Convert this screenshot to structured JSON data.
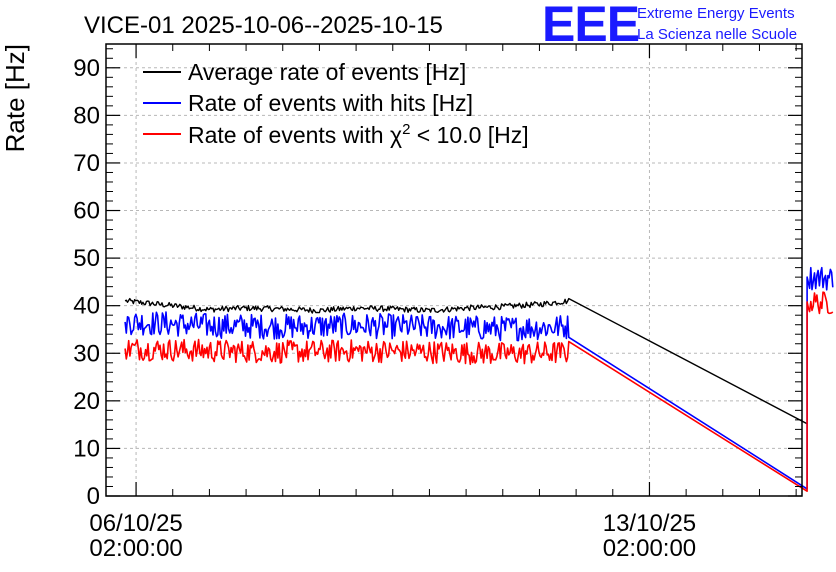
{
  "chart_data": {
    "type": "line",
    "title": "VICE-01 2025-10-06--2025-10-15",
    "ylabel": "Rate [Hz]",
    "xlabel": "",
    "ylim": [
      0,
      95
    ],
    "y_ticks": [
      0,
      10,
      20,
      30,
      40,
      50,
      60,
      70,
      80,
      90
    ],
    "x_range_days": [
      -0.41,
      9.08
    ],
    "x_ticks": [
      {
        "day": 0,
        "date": "06/10/25",
        "time": "02:00:00"
      },
      {
        "day": 7,
        "date": "13/10/25",
        "time": "02:00:00"
      }
    ],
    "grid": true,
    "legend_position": "top-left",
    "series": [
      {
        "name": "Average rate of events [Hz]",
        "color": "#000000",
        "noise": 0.6,
        "points": [
          [
            -0.15,
            41.0
          ],
          [
            0.5,
            40.0
          ],
          [
            1.0,
            39.2
          ],
          [
            1.5,
            39.5
          ],
          [
            2.0,
            39.3
          ],
          [
            2.5,
            39.0
          ],
          [
            3.0,
            39.5
          ],
          [
            3.5,
            39.3
          ],
          [
            4.0,
            39.0
          ],
          [
            4.5,
            39.5
          ],
          [
            5.0,
            39.8
          ],
          [
            5.5,
            40.3
          ],
          [
            5.9,
            41.0
          ],
          [
            9.15,
            15.2
          ]
        ]
      },
      {
        "name": "Rate of events with hits [Hz]",
        "color": "#0000ff",
        "noise": 1.2,
        "points": [
          [
            -0.15,
            36.6
          ],
          [
            1.0,
            35.8
          ],
          [
            2.0,
            35.6
          ],
          [
            3.0,
            35.8
          ],
          [
            4.0,
            35.5
          ],
          [
            5.0,
            35.2
          ],
          [
            5.9,
            35.6
          ],
          [
            9.15,
            1.5
          ],
          [
            9.15,
            46.0
          ],
          [
            9.5,
            45.8
          ]
        ]
      },
      {
        "name": "Rate of events with χ² < 10.0 [Hz]",
        "color": "#ff0000",
        "noise": 1.1,
        "points": [
          [
            -0.15,
            31.0
          ],
          [
            1.0,
            30.5
          ],
          [
            2.0,
            30.3
          ],
          [
            3.0,
            30.5
          ],
          [
            4.0,
            30.3
          ],
          [
            5.0,
            29.9
          ],
          [
            5.9,
            30.2
          ],
          [
            9.15,
            1.0
          ],
          [
            9.15,
            40.8
          ],
          [
            9.5,
            40.5
          ]
        ]
      }
    ]
  },
  "legend": {
    "items": [
      {
        "text": "Average rate of events [Hz]"
      },
      {
        "text": "Rate of events with hits [Hz]"
      },
      {
        "text_prefix": "Rate of events with ",
        "symbol": "χ",
        "sup": "2",
        "text_suffix": " < 10.0 [Hz]"
      }
    ]
  },
  "logo": {
    "mark": "EEE",
    "line1": "Extreme Energy Events",
    "line2": "La Scienza nelle Scuole"
  },
  "colors": {
    "black": "#000000",
    "blue": "#0000ff",
    "red": "#ff0000",
    "logo": "#1a1aff"
  }
}
